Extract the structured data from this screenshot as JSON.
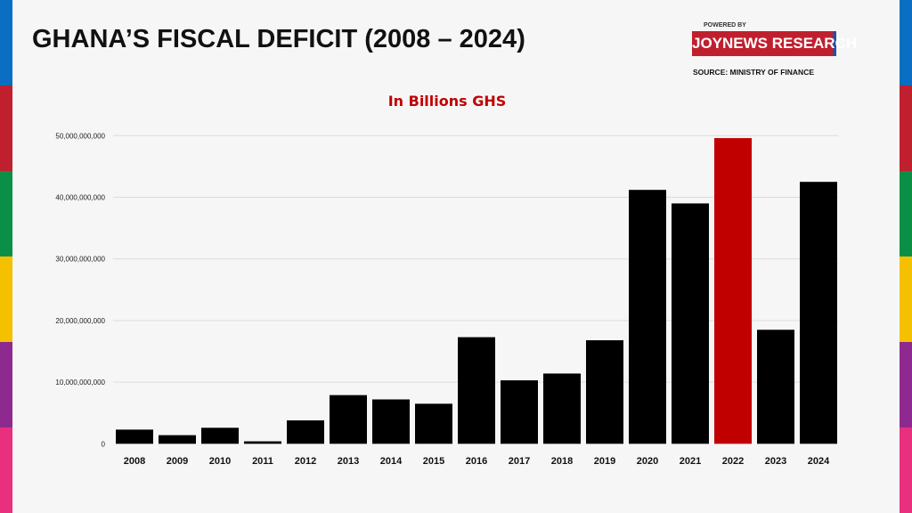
{
  "header": {
    "title": "GHANA’S FISCAL DEFICIT (2008 – 2024)",
    "powered_by": "POWERED BY",
    "brand": "JOYNEWS RESEARCH",
    "source": "SOURCE: MINISTRY OF FINANCE"
  },
  "colors": {
    "stripes": [
      "#0a6fc2",
      "#c0202e",
      "#0a8f46",
      "#f5c000",
      "#8e2a8f",
      "#e8307e"
    ],
    "bar": "#000000",
    "highlight": "#c00000"
  },
  "chart_data": {
    "type": "bar",
    "title": "In Billions GHS",
    "categories": [
      "2008",
      "2009",
      "2010",
      "2011",
      "2012",
      "2013",
      "2014",
      "2015",
      "2016",
      "2017",
      "2018",
      "2019",
      "2020",
      "2021",
      "2022",
      "2023",
      "2024"
    ],
    "values": [
      2300000000,
      1400000000,
      2600000000,
      400000000,
      3800000000,
      7900000000,
      7200000000,
      6500000000,
      17300000000,
      10300000000,
      11400000000,
      16800000000,
      41200000000,
      39000000000,
      49600000000,
      18500000000,
      42500000000
    ],
    "highlight_category": "2022",
    "ylim": [
      0,
      50000000000
    ],
    "yticks": [
      0,
      10000000000,
      20000000000,
      30000000000,
      40000000000,
      50000000000
    ],
    "ytick_labels": [
      "0",
      "10,000,000,000",
      "20,000,000,000",
      "30,000,000,000",
      "40,000,000,000",
      "50,000,000,000"
    ],
    "grid": true
  }
}
